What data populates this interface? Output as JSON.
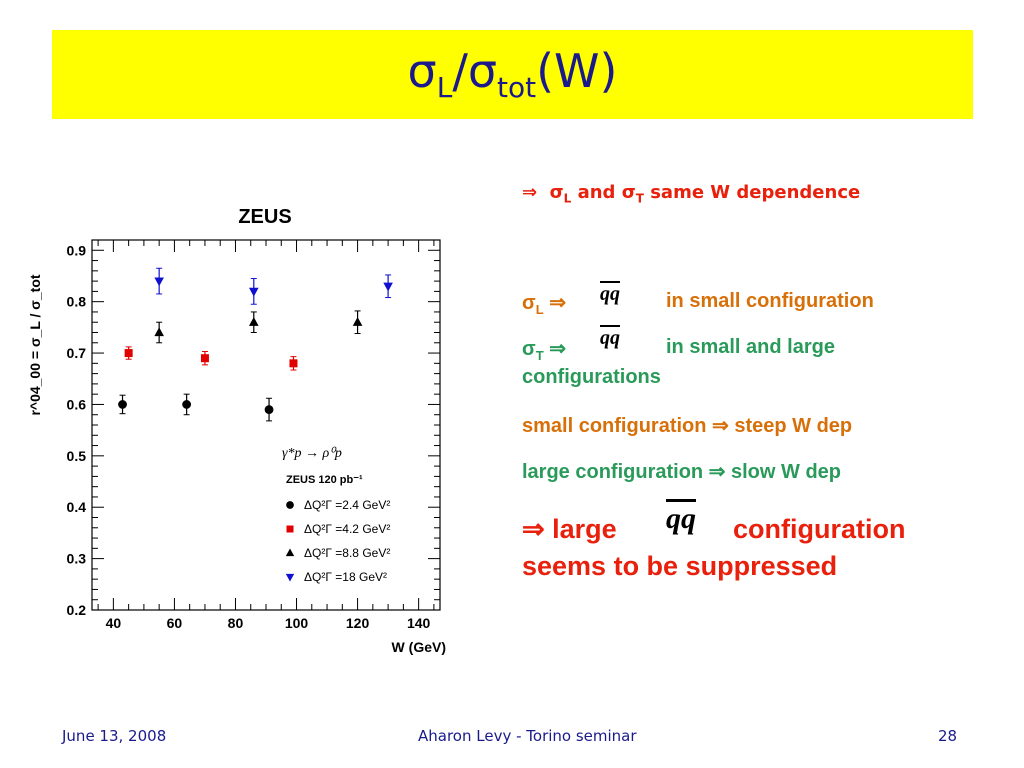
{
  "slide": {
    "title_main1": "σ",
    "title_sub1": "L",
    "title_slash": "/",
    "title_main2": "σ",
    "title_sub2": "tot",
    "title_tail": "(W)"
  },
  "bullets": {
    "b1_arrow": "⇒",
    "b1_s1": "σ",
    "b1_sub1": "L",
    "b1_mid": " and ",
    "b1_s2": "σ",
    "b1_sub2": "T",
    "b1_tail": " same W dependence",
    "b2_s": "σ",
    "b2_sub": "L",
    "b2_arrow": "⇒",
    "b2_qq": "qq",
    "b2_text": "in small configuration",
    "b3_s": "σ",
    "b3_sub": "T",
    "b3_arrow": "⇒",
    "b3_qq": "qq",
    "b3_text": "in small and large",
    "b3_text2": "configurations",
    "b4_text": "small configuration ⇒ steep W dep",
    "b5_text": "large configuration ⇒ slow W dep",
    "b6_pre": "⇒ large",
    "b6_qq": "qq",
    "b6_post": "configuration",
    "b6_line2": "seems to be suppressed"
  },
  "footer": {
    "date": "June 13, 2008",
    "center": "Aharon Levy - Torino seminar",
    "page": "28"
  },
  "colors": {
    "title_bg": "#ffff00",
    "title_text": "#1a1a8c",
    "red": "#e8200c",
    "orange": "#d8700a",
    "green": "#2a9a5a"
  },
  "chart_data": {
    "type": "scatter",
    "title": "ZEUS",
    "xlabel": "W (GeV)",
    "ylabel": "r^04_00 = σ_L / σ_tot",
    "xlim": [
      33,
      147
    ],
    "ylim": [
      0.2,
      0.92
    ],
    "xticks": [
      40,
      60,
      80,
      100,
      120,
      140
    ],
    "yticks": [
      0.2,
      0.3,
      0.4,
      0.5,
      0.6,
      0.7,
      0.8,
      0.9
    ],
    "legend": {
      "process": "γ*p → ρ⁰p",
      "dataset": "ZEUS  120 pb⁻¹",
      "position": "bottom-right"
    },
    "series": [
      {
        "name": "ΔQ²Γ =2.4  GeV²",
        "marker": "circle",
        "color": "#000000",
        "x": [
          43,
          64,
          91
        ],
        "y": [
          0.6,
          0.6,
          0.59
        ],
        "err": [
          0.018,
          0.02,
          0.022
        ]
      },
      {
        "name": "ΔQ²Γ =4.2  GeV²",
        "marker": "square",
        "color": "#e00000",
        "x": [
          45,
          70,
          99
        ],
        "y": [
          0.7,
          0.69,
          0.68
        ],
        "err": [
          0.012,
          0.013,
          0.013
        ]
      },
      {
        "name": "ΔQ²Γ =8.8  GeV²",
        "marker": "triangle-up",
        "color": "#000000",
        "x": [
          55,
          86,
          120
        ],
        "y": [
          0.74,
          0.76,
          0.76
        ],
        "err": [
          0.02,
          0.02,
          0.022
        ]
      },
      {
        "name": "ΔQ²Γ =18  GeV²",
        "marker": "triangle-down",
        "color": "#1010d0",
        "x": [
          55,
          86,
          130
        ],
        "y": [
          0.84,
          0.82,
          0.83
        ],
        "err": [
          0.025,
          0.025,
          0.022
        ]
      }
    ]
  }
}
